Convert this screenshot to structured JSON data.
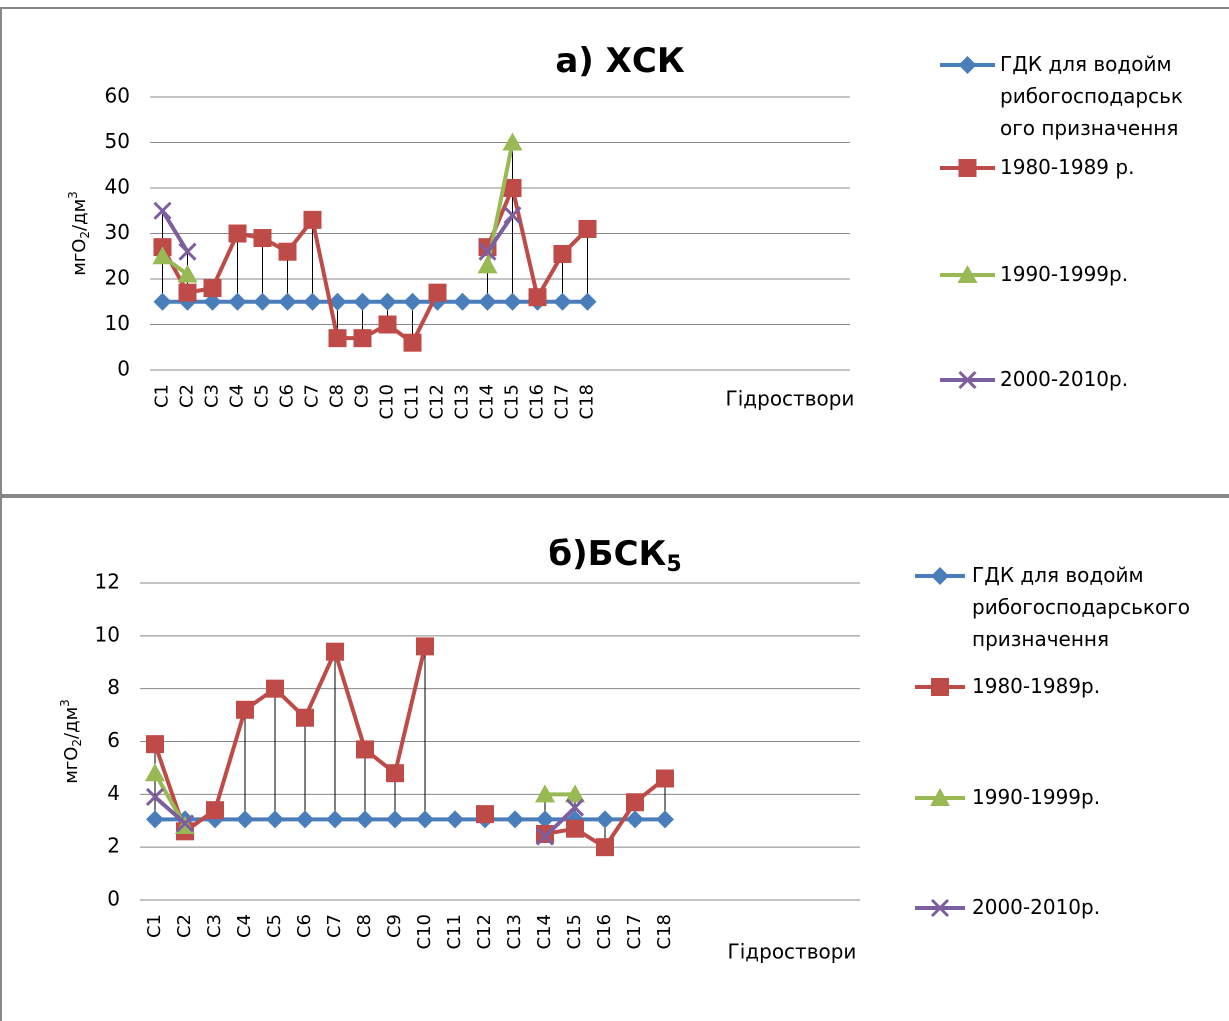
{
  "chart_data": [
    {
      "type": "line",
      "title": "а) ХСК",
      "y_label": {
        "main": "мгО",
        "sub": "2",
        "unit": "/дм",
        "sup": "3"
      },
      "x_label": "Гідроствори",
      "categories": [
        "С1",
        "С2",
        "С3",
        "С4",
        "С5",
        "С6",
        "С7",
        "С8",
        "С9",
        "С10",
        "С11",
        "С12",
        "С13",
        "С14",
        "С15",
        "С16",
        "С17",
        "С18",
        null,
        null,
        null,
        null,
        null,
        null,
        null,
        null,
        null,
        null
      ],
      "ylim": [
        0,
        60
      ],
      "yticks": [
        0,
        10,
        20,
        30,
        40,
        50,
        60
      ],
      "grid": true,
      "legend": "right",
      "series": [
        {
          "name": "ГДК для водойм рибогосподарського призначення",
          "color": "#4a7ebb",
          "marker": "diamond",
          "values": [
            15,
            15,
            15,
            15,
            15,
            15,
            15,
            15,
            15,
            15,
            15,
            15,
            15,
            15,
            15,
            15,
            15,
            15,
            null,
            null,
            null,
            null,
            null,
            null,
            null,
            null,
            null,
            null
          ]
        },
        {
          "name": "1980-1989 р.",
          "color": "#be4b48",
          "marker": "square",
          "values": [
            27,
            17,
            18,
            30,
            29,
            26,
            33,
            7,
            7,
            10,
            6,
            17,
            null,
            27,
            40,
            16,
            25.5,
            31,
            null,
            null,
            null,
            null,
            null,
            null,
            null,
            null,
            null,
            null
          ]
        },
        {
          "name": "1990-1999р.",
          "color": "#98b954",
          "marker": "triangle",
          "values": [
            25,
            21,
            null,
            null,
            null,
            null,
            null,
            null,
            null,
            null,
            null,
            null,
            null,
            23,
            50,
            null,
            null,
            null,
            null,
            null,
            null,
            null,
            null,
            null,
            null,
            null,
            null,
            null
          ]
        },
        {
          "name": "2000-2010р.",
          "color": "#7d5fa0",
          "marker": "x",
          "values": [
            35,
            26,
            null,
            null,
            null,
            null,
            null,
            null,
            null,
            null,
            null,
            null,
            null,
            26,
            34,
            null,
            null,
            null,
            null,
            null,
            null,
            null,
            null,
            null,
            null,
            null,
            null,
            null
          ]
        }
      ]
    },
    {
      "type": "line",
      "title": "б)БСК",
      "title_subscript": "5",
      "y_label": {
        "main": "мгО",
        "sub": "2",
        "unit": "/дм",
        "sup": "3"
      },
      "x_label": "Гідроствори",
      "categories": [
        "С1",
        "С2",
        "С3",
        "С4",
        "С5",
        "С6",
        "С7",
        "С8",
        "С9",
        "С10",
        "С11",
        "С12",
        "С13",
        "С14",
        "С15",
        "С16",
        "С17",
        "С18",
        null,
        null,
        null,
        null,
        null,
        null
      ],
      "ylim": [
        0,
        12
      ],
      "yticks": [
        0,
        2,
        4,
        6,
        8,
        10,
        12
      ],
      "grid": true,
      "legend": "right",
      "series": [
        {
          "name": "ГДК для водойм рибогосподарського призначення",
          "color": "#4a7ebb",
          "marker": "diamond",
          "values": [
            3.05,
            3.05,
            3.05,
            3.05,
            3.05,
            3.05,
            3.05,
            3.05,
            3.05,
            3.05,
            3.05,
            3.05,
            3.05,
            3.05,
            3.05,
            3.05,
            3.05,
            3.05,
            null,
            null,
            null,
            null,
            null,
            null
          ]
        },
        {
          "name": "1980-1989р.",
          "color": "#be4b48",
          "marker": "square",
          "values": [
            5.9,
            2.6,
            3.4,
            7.2,
            8.0,
            6.9,
            9.4,
            5.7,
            4.8,
            9.6,
            null,
            3.25,
            null,
            2.5,
            2.7,
            2.0,
            3.7,
            4.6,
            null,
            null,
            null,
            null,
            null,
            null
          ]
        },
        {
          "name": "1990-1999р.",
          "color": "#98b954",
          "marker": "triangle",
          "values": [
            4.8,
            2.8,
            null,
            null,
            null,
            null,
            null,
            null,
            null,
            null,
            null,
            null,
            null,
            4.0,
            4.0,
            null,
            null,
            null,
            null,
            null,
            null,
            null,
            null,
            null
          ]
        },
        {
          "name": "2000-2010р.",
          "color": "#7d5fa0",
          "marker": "x",
          "values": [
            3.9,
            2.9,
            null,
            null,
            null,
            null,
            null,
            null,
            null,
            null,
            null,
            null,
            null,
            2.4,
            3.5,
            null,
            null,
            null,
            null,
            null,
            null,
            null,
            null,
            null
          ]
        }
      ]
    }
  ]
}
